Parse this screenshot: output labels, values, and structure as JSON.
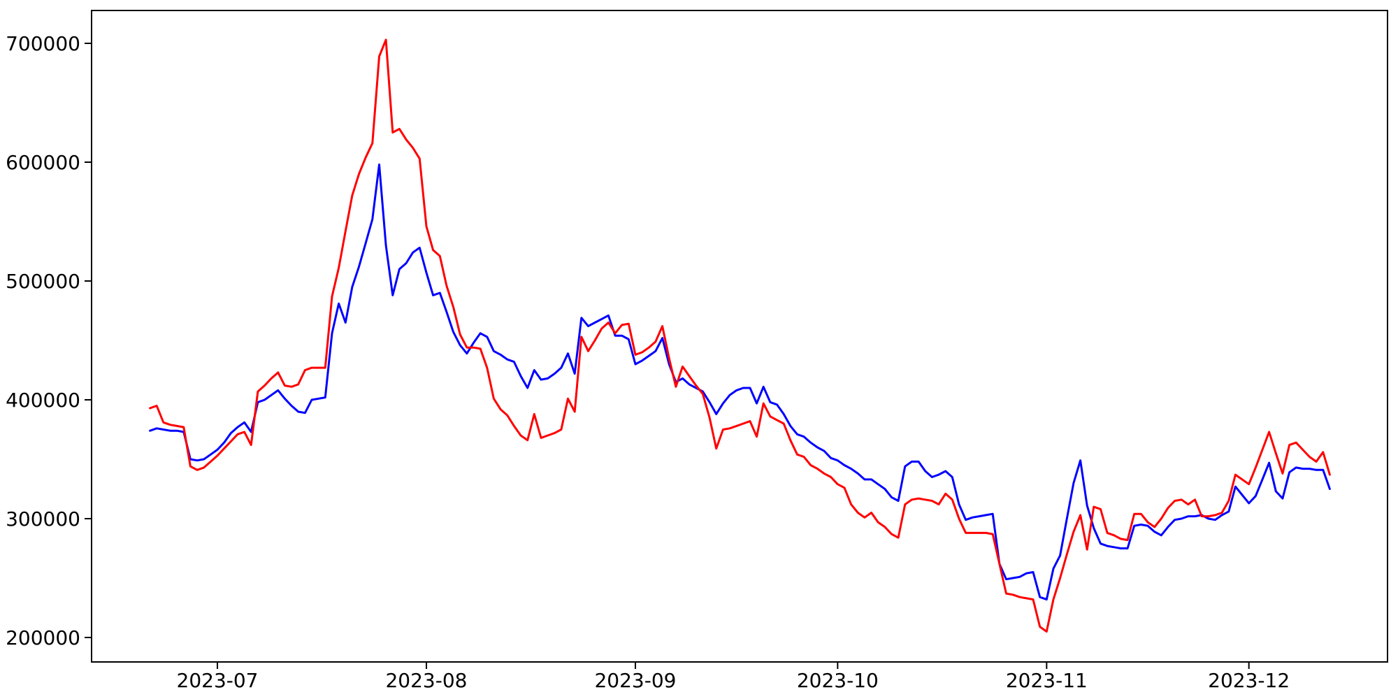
{
  "chart_data": {
    "type": "line",
    "title": "",
    "xlabel": "",
    "ylabel": "",
    "grid": false,
    "legend": null,
    "background_color": "#ffffff",
    "axis_color": "#000000",
    "x_axis": {
      "start_date": "2023-06-21",
      "end_date": "2023-12-13",
      "frequency": "daily",
      "tick_labels": [
        "2023-07",
        "2023-08",
        "2023-09",
        "2023-10",
        "2023-11",
        "2023-12"
      ],
      "tick_day_offsets": [
        10,
        41,
        72,
        102,
        133,
        163
      ]
    },
    "y_axis": {
      "ticks": [
        200000,
        300000,
        400000,
        500000,
        600000,
        700000
      ],
      "tick_labels": [
        "200000",
        "300000",
        "400000",
        "500000",
        "600000",
        "700000"
      ],
      "ylim": [
        179000,
        728000
      ]
    },
    "series": [
      {
        "name": "blue-series",
        "color": "#0000ff",
        "values": [
          374000,
          376000,
          375000,
          374000,
          374000,
          373000,
          350000,
          349000,
          350000,
          354000,
          358000,
          364000,
          372000,
          377000,
          381000,
          373000,
          398000,
          400000,
          404000,
          408000,
          401000,
          395000,
          390000,
          389000,
          400000,
          401000,
          402000,
          456000,
          481000,
          465000,
          495000,
          512000,
          532000,
          552000,
          598000,
          530000,
          488000,
          510000,
          515000,
          524000,
          528000,
          507000,
          488000,
          490000,
          474000,
          457000,
          446000,
          439000,
          448000,
          456000,
          453000,
          441000,
          438000,
          434000,
          432000,
          420000,
          410000,
          425000,
          417000,
          418000,
          422000,
          427000,
          439000,
          422000,
          469000,
          462000,
          465000,
          468000,
          471000,
          454000,
          454000,
          451000,
          430000,
          433000,
          437000,
          441000,
          452000,
          430000,
          415000,
          418000,
          413000,
          410000,
          407000,
          398000,
          388000,
          397000,
          404000,
          408000,
          410000,
          410000,
          397000,
          411000,
          398000,
          396000,
          388000,
          378000,
          371000,
          369000,
          364000,
          360000,
          357000,
          351000,
          349000,
          345000,
          342000,
          338000,
          333000,
          333000,
          329000,
          325000,
          318000,
          315000,
          344000,
          348000,
          348000,
          340000,
          335000,
          337000,
          340000,
          335000,
          312000,
          299000,
          301000,
          302000,
          303000,
          304000,
          262000,
          249000,
          250000,
          251000,
          254000,
          255000,
          234000,
          232000,
          258000,
          269000,
          300000,
          330000,
          349000,
          311000,
          292000,
          279000,
          277000,
          276000,
          275000,
          275000,
          294000,
          295000,
          294000,
          289000,
          286000,
          293000,
          299000,
          300000,
          302000,
          302000,
          303000,
          300000,
          299000,
          303000,
          306000,
          327000,
          320000,
          313000,
          319000,
          333000,
          347000,
          323000,
          317000,
          339000,
          343000,
          342000,
          342000,
          341000,
          341000,
          325000
        ]
      },
      {
        "name": "red-series",
        "color": "#ff0000",
        "values": [
          393000,
          395000,
          381000,
          379000,
          378000,
          377000,
          344000,
          341000,
          343000,
          348000,
          353000,
          359000,
          365000,
          371000,
          373000,
          362000,
          407000,
          412000,
          418000,
          423000,
          412000,
          411000,
          413000,
          425000,
          427000,
          427000,
          427000,
          487000,
          511000,
          542000,
          572000,
          590000,
          604000,
          616000,
          689000,
          703000,
          625000,
          628000,
          619000,
          612000,
          603000,
          546000,
          526000,
          521000,
          496000,
          478000,
          455000,
          444000,
          444000,
          443000,
          427000,
          401000,
          392000,
          387000,
          378000,
          370000,
          366000,
          388000,
          368000,
          370000,
          372000,
          375000,
          401000,
          390000,
          453000,
          441000,
          450000,
          460000,
          465000,
          456000,
          463000,
          464000,
          438000,
          440000,
          444000,
          449000,
          462000,
          435000,
          411000,
          428000,
          420000,
          412000,
          405000,
          385000,
          359000,
          375000,
          376000,
          378000,
          380000,
          382000,
          369000,
          397000,
          386000,
          383000,
          380000,
          366000,
          354000,
          352000,
          345000,
          342000,
          338000,
          335000,
          329000,
          326000,
          312000,
          305000,
          301000,
          305000,
          297000,
          293000,
          287000,
          284000,
          312000,
          316000,
          317000,
          316000,
          315000,
          312000,
          321000,
          316000,
          300000,
          288000,
          288000,
          288000,
          288000,
          287000,
          262000,
          237000,
          236000,
          234000,
          233000,
          232000,
          209000,
          205000,
          232000,
          250000,
          270000,
          289000,
          303000,
          274000,
          310000,
          308000,
          288000,
          286000,
          283000,
          282000,
          304000,
          304000,
          297000,
          293000,
          300000,
          309000,
          315000,
          316000,
          312000,
          316000,
          302000,
          302000,
          303000,
          305000,
          315000,
          337000,
          333000,
          329000,
          343000,
          358000,
          373000,
          355000,
          338000,
          362000,
          364000,
          358000,
          352000,
          348000,
          356000,
          337000
        ]
      }
    ]
  }
}
